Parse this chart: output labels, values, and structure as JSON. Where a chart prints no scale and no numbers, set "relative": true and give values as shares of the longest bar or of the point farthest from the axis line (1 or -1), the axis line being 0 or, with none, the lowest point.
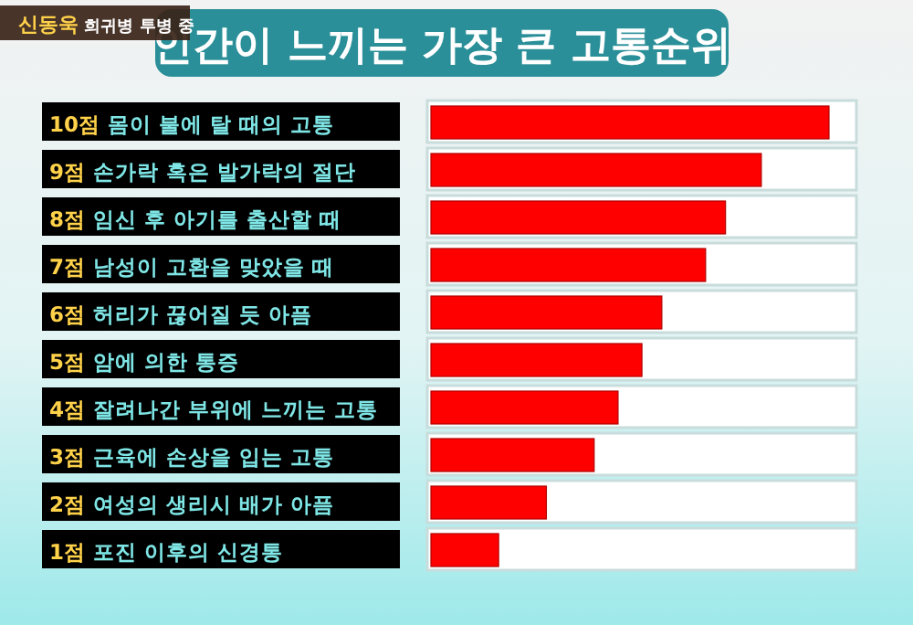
{
  "chart_data": {
    "type": "bar",
    "orientation": "horizontal",
    "relative": true,
    "title": "인간이 느끼는 가장 큰 고통순위",
    "annotations": [
      "신동욱 희귀병 투병 중"
    ],
    "categories": [
      "10점 몸이 불에 탈 때의 고통",
      "9점 손가락 혹은 발가락의 절단",
      "8점 임신 후 아기를 출산할 때",
      "7점 남성이 고환을 맞았을 때",
      "6점 허리가 끊어질 듯 아픔",
      "5점 암에 의한 통증",
      "4점 잘려나간 부위에 느끼는 고통",
      "3점 근육에 손상을 입는 고통",
      "2점 여성의 생리시 배가 아픔",
      "1점 포진 이후의 신경통"
    ],
    "values": [
      1,
      0.83,
      0.74,
      0.69,
      0.58,
      0.53,
      0.47,
      0.41,
      0.29,
      0.17
    ],
    "color": "#ff0000"
  }
}
